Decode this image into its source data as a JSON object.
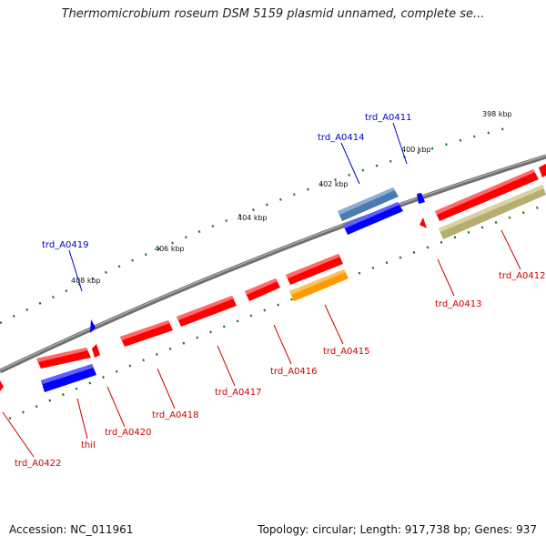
{
  "title": "Thermomicrobium roseum DSM 5159 plasmid unnamed, complete se...",
  "footer": {
    "accession": "Accession: NC_011961",
    "topology": "Topology: circular; Length: 917,738 bp; Genes: 937"
  },
  "colors": {
    "backbone": "#7a7a7a",
    "tick": "#1a7a1a",
    "forward_gene": "#ff0000",
    "reverse_gene": "#0000ff",
    "steelblue_gene": "#4a7ab0",
    "orange_gene": "#ff9a00",
    "olive_gene": "#b5ad72",
    "forward_label": "#cc0000",
    "reverse_label": "#0000cc"
  },
  "ticks": [
    "398 kbp",
    "400 kbp",
    "402 kbp",
    "404 kbp",
    "406 kbp",
    "408 kbp"
  ],
  "labels": {
    "trd_A0411": "trd_A0411",
    "trd_A0414": "trd_A0414",
    "trd_A0419": "trd_A0419",
    "trd_A0412": "trd_A0412",
    "trd_A0413": "trd_A0413",
    "trd_A0415": "trd_A0415",
    "trd_A0416": "trd_A0416",
    "trd_A0417": "trd_A0417",
    "trd_A0418": "trd_A0418",
    "trd_A0420": "trd_A0420",
    "thil": "thiI",
    "trd_A0422": "trd_A0422"
  }
}
